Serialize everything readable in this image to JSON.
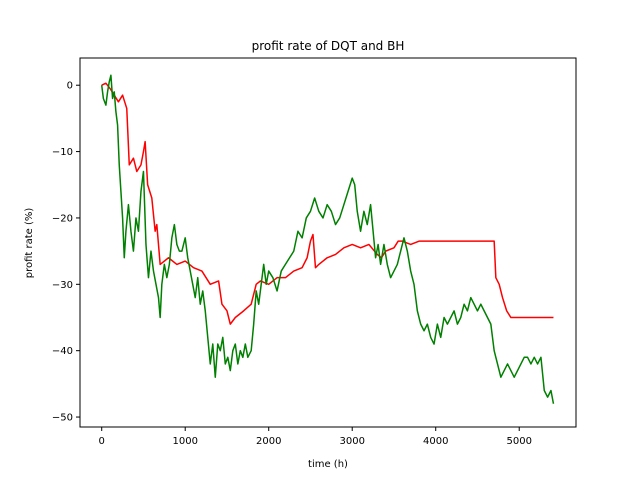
{
  "chart_data": {
    "type": "line",
    "title": "profit rate of DQT and BH",
    "xlabel": "time (h)",
    "ylabel": "profit rate (%)",
    "xlim": [
      -260,
      5680
    ],
    "ylim": [
      -51.5,
      4.1
    ],
    "grid": false,
    "legend": "none",
    "x_ticks": [
      0,
      1000,
      2000,
      3000,
      4000,
      5000
    ],
    "y_ticks": [
      0,
      -10,
      -20,
      -30,
      -40,
      -50
    ],
    "x_tick_labels": [
      "0",
      "1000",
      "2000",
      "3000",
      "4000",
      "5000"
    ],
    "y_tick_labels": [
      "0",
      "−10",
      "−20",
      "−30",
      "−40",
      "−50"
    ],
    "series": [
      {
        "color": "#ff0000",
        "points": [
          [
            0,
            0
          ],
          [
            50,
            0.3
          ],
          [
            100,
            -0.5
          ],
          [
            150,
            -1.5
          ],
          [
            200,
            -2.5
          ],
          [
            250,
            -1.5
          ],
          [
            300,
            -3.5
          ],
          [
            330,
            -12
          ],
          [
            380,
            -11
          ],
          [
            420,
            -13
          ],
          [
            470,
            -12
          ],
          [
            500,
            -10
          ],
          [
            520,
            -8.5
          ],
          [
            550,
            -15
          ],
          [
            600,
            -17
          ],
          [
            640,
            -22
          ],
          [
            660,
            -21
          ],
          [
            700,
            -27
          ],
          [
            800,
            -26
          ],
          [
            900,
            -27
          ],
          [
            1000,
            -26.5
          ],
          [
            1100,
            -27.5
          ],
          [
            1200,
            -28
          ],
          [
            1300,
            -30
          ],
          [
            1400,
            -29.5
          ],
          [
            1440,
            -33
          ],
          [
            1500,
            -34
          ],
          [
            1540,
            -36
          ],
          [
            1600,
            -35
          ],
          [
            1700,
            -34
          ],
          [
            1790,
            -33
          ],
          [
            1850,
            -30
          ],
          [
            1900,
            -29.5
          ],
          [
            2000,
            -30
          ],
          [
            2100,
            -29
          ],
          [
            2200,
            -29
          ],
          [
            2300,
            -28
          ],
          [
            2400,
            -27.5
          ],
          [
            2460,
            -26
          ],
          [
            2500,
            -23.5
          ],
          [
            2530,
            -22.5
          ],
          [
            2560,
            -27.5
          ],
          [
            2600,
            -27
          ],
          [
            2700,
            -26
          ],
          [
            2800,
            -25.5
          ],
          [
            2900,
            -24.5
          ],
          [
            3000,
            -24
          ],
          [
            3100,
            -24.5
          ],
          [
            3200,
            -24
          ],
          [
            3300,
            -25.5
          ],
          [
            3350,
            -26
          ],
          [
            3400,
            -25
          ],
          [
            3500,
            -24.5
          ],
          [
            3550,
            -23.5
          ],
          [
            3600,
            -23.5
          ],
          [
            3700,
            -24
          ],
          [
            3800,
            -23.5
          ],
          [
            3900,
            -23.5
          ],
          [
            4000,
            -23.5
          ],
          [
            4100,
            -23.5
          ],
          [
            4200,
            -23.5
          ],
          [
            4300,
            -23.5
          ],
          [
            4400,
            -23.5
          ],
          [
            4500,
            -23.5
          ],
          [
            4600,
            -23.5
          ],
          [
            4700,
            -23.5
          ],
          [
            4720,
            -29
          ],
          [
            4760,
            -30
          ],
          [
            4800,
            -32
          ],
          [
            4850,
            -34
          ],
          [
            4900,
            -35
          ],
          [
            5000,
            -35
          ],
          [
            5100,
            -35
          ],
          [
            5200,
            -35
          ],
          [
            5300,
            -35
          ],
          [
            5410,
            -35
          ]
        ]
      },
      {
        "color": "#008000",
        "points": [
          [
            0,
            0
          ],
          [
            20,
            -2
          ],
          [
            50,
            -3
          ],
          [
            70,
            -1
          ],
          [
            90,
            0.5
          ],
          [
            110,
            1.5
          ],
          [
            130,
            -2
          ],
          [
            150,
            -1
          ],
          [
            170,
            -4
          ],
          [
            190,
            -6
          ],
          [
            210,
            -12
          ],
          [
            230,
            -16
          ],
          [
            250,
            -20
          ],
          [
            270,
            -26
          ],
          [
            290,
            -22
          ],
          [
            320,
            -18
          ],
          [
            350,
            -22
          ],
          [
            380,
            -25
          ],
          [
            410,
            -20
          ],
          [
            440,
            -22
          ],
          [
            470,
            -16
          ],
          [
            500,
            -13
          ],
          [
            530,
            -24
          ],
          [
            560,
            -29
          ],
          [
            590,
            -25
          ],
          [
            620,
            -28
          ],
          [
            650,
            -30
          ],
          [
            680,
            -32
          ],
          [
            700,
            -35
          ],
          [
            720,
            -30
          ],
          [
            750,
            -27
          ],
          [
            780,
            -29
          ],
          [
            810,
            -27
          ],
          [
            840,
            -23
          ],
          [
            870,
            -21
          ],
          [
            900,
            -24
          ],
          [
            930,
            -25
          ],
          [
            960,
            -25
          ],
          [
            1000,
            -23
          ],
          [
            1030,
            -26
          ],
          [
            1060,
            -28
          ],
          [
            1090,
            -30
          ],
          [
            1120,
            -32
          ],
          [
            1150,
            -29
          ],
          [
            1180,
            -33
          ],
          [
            1210,
            -31
          ],
          [
            1240,
            -34
          ],
          [
            1270,
            -38
          ],
          [
            1300,
            -42
          ],
          [
            1330,
            -39
          ],
          [
            1360,
            -44
          ],
          [
            1390,
            -39
          ],
          [
            1420,
            -40
          ],
          [
            1450,
            -38
          ],
          [
            1480,
            -42
          ],
          [
            1510,
            -41
          ],
          [
            1540,
            -43
          ],
          [
            1570,
            -40
          ],
          [
            1600,
            -39
          ],
          [
            1630,
            -42
          ],
          [
            1660,
            -40
          ],
          [
            1690,
            -41
          ],
          [
            1720,
            -39
          ],
          [
            1750,
            -41
          ],
          [
            1790,
            -40
          ],
          [
            1820,
            -36
          ],
          [
            1850,
            -31
          ],
          [
            1880,
            -33
          ],
          [
            1910,
            -30
          ],
          [
            1940,
            -27
          ],
          [
            1970,
            -30
          ],
          [
            2000,
            -28
          ],
          [
            2050,
            -29
          ],
          [
            2100,
            -31
          ],
          [
            2150,
            -28
          ],
          [
            2200,
            -27
          ],
          [
            2250,
            -26
          ],
          [
            2300,
            -25
          ],
          [
            2350,
            -22
          ],
          [
            2400,
            -23
          ],
          [
            2450,
            -20
          ],
          [
            2500,
            -19
          ],
          [
            2550,
            -17
          ],
          [
            2600,
            -19
          ],
          [
            2650,
            -20
          ],
          [
            2700,
            -18
          ],
          [
            2750,
            -19
          ],
          [
            2800,
            -21
          ],
          [
            2850,
            -20
          ],
          [
            2900,
            -18
          ],
          [
            2950,
            -16
          ],
          [
            3000,
            -14
          ],
          [
            3030,
            -15
          ],
          [
            3060,
            -19
          ],
          [
            3100,
            -22
          ],
          [
            3140,
            -19
          ],
          [
            3180,
            -21
          ],
          [
            3220,
            -18
          ],
          [
            3250,
            -22
          ],
          [
            3280,
            -26
          ],
          [
            3310,
            -24
          ],
          [
            3340,
            -27
          ],
          [
            3380,
            -24
          ],
          [
            3420,
            -27
          ],
          [
            3460,
            -29
          ],
          [
            3500,
            -28
          ],
          [
            3540,
            -27
          ],
          [
            3580,
            -25
          ],
          [
            3620,
            -23
          ],
          [
            3660,
            -25
          ],
          [
            3700,
            -28
          ],
          [
            3740,
            -30
          ],
          [
            3780,
            -34
          ],
          [
            3820,
            -36
          ],
          [
            3860,
            -37
          ],
          [
            3900,
            -36
          ],
          [
            3940,
            -38
          ],
          [
            3980,
            -39
          ],
          [
            4020,
            -36
          ],
          [
            4060,
            -38
          ],
          [
            4100,
            -35
          ],
          [
            4140,
            -36
          ],
          [
            4180,
            -35
          ],
          [
            4220,
            -34
          ],
          [
            4260,
            -36
          ],
          [
            4300,
            -35
          ],
          [
            4340,
            -33
          ],
          [
            4380,
            -34
          ],
          [
            4420,
            -32
          ],
          [
            4460,
            -33
          ],
          [
            4500,
            -34
          ],
          [
            4540,
            -33
          ],
          [
            4580,
            -34
          ],
          [
            4620,
            -35
          ],
          [
            4660,
            -36
          ],
          [
            4700,
            -40
          ],
          [
            4740,
            -42
          ],
          [
            4780,
            -44
          ],
          [
            4820,
            -43
          ],
          [
            4860,
            -42
          ],
          [
            4900,
            -43
          ],
          [
            4940,
            -44
          ],
          [
            4980,
            -43
          ],
          [
            5020,
            -42
          ],
          [
            5060,
            -41
          ],
          [
            5100,
            -41
          ],
          [
            5140,
            -42
          ],
          [
            5180,
            -41
          ],
          [
            5220,
            -42
          ],
          [
            5260,
            -41
          ],
          [
            5300,
            -46
          ],
          [
            5340,
            -47
          ],
          [
            5380,
            -46
          ],
          [
            5410,
            -48
          ]
        ]
      }
    ]
  }
}
